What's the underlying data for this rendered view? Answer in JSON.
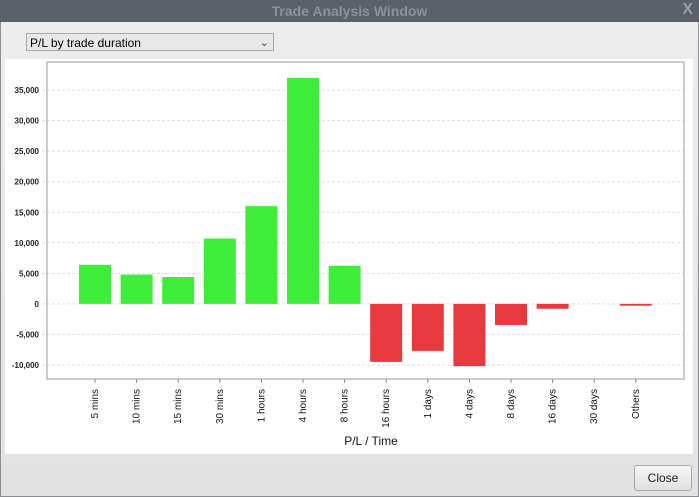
{
  "window": {
    "title": "Trade Analysis Window",
    "close_label": "X"
  },
  "selector": {
    "value": "P/L by trade duration"
  },
  "footer": {
    "close_button": "Close"
  },
  "colors": {
    "positive": "#3ded3a",
    "negative": "#e8393e",
    "grid": "#dddddd"
  },
  "chart_data": {
    "type": "bar",
    "title": "",
    "xlabel": "P/L / Time",
    "ylabel": "",
    "categories": [
      "5 mins",
      "10 mins",
      "15 mins",
      "30 mins",
      "1 hours",
      "4 hours",
      "8 hours",
      "16 hours",
      "1 days",
      "4 days",
      "8 days",
      "16 days",
      "30 days",
      "Others"
    ],
    "values": [
      6400,
      4800,
      4400,
      10700,
      16000,
      37000,
      6250,
      -9500,
      -7700,
      -10200,
      -3450,
      -800,
      0,
      -300
    ],
    "ylim": [
      -12300,
      39600
    ],
    "yticks": [
      -10000,
      -5000,
      0,
      5000,
      10000,
      15000,
      20000,
      25000,
      30000,
      35000
    ],
    "ytick_labels": [
      "-10,000",
      "-5,000",
      "0",
      "5,000",
      "10,000",
      "15,000",
      "20,000",
      "25,000",
      "30,000",
      "35,000"
    ],
    "grid": true
  }
}
